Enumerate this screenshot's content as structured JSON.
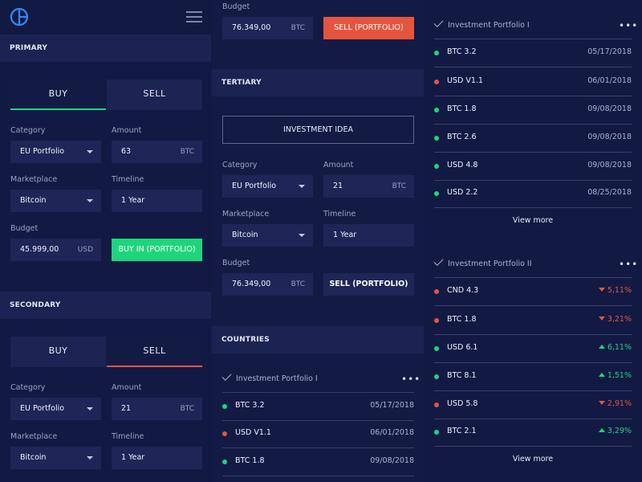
{
  "primary": {
    "section": "PRIMARY",
    "tabs": [
      "BUY",
      "SELL"
    ],
    "category_label": "Category",
    "category_value": "EU Portfolio",
    "amount_label": "Amount",
    "amount_value": "63",
    "amount_unit": "BTC",
    "marketplace_label": "Marketplace",
    "marketplace_value": "Bitcoin",
    "timeline_label": "Timeline",
    "timeline_value": "1 Year",
    "budget_label": "Budget",
    "budget_value": "45.999,00",
    "budget_unit": "USD",
    "action_label": "BUY IN (PORTFOLIO)"
  },
  "secondary": {
    "section": "SECONDARY",
    "tabs": [
      "BUY",
      "SELL"
    ],
    "category_label": "Category",
    "category_value": "EU Portfolio",
    "amount_label": "Amount",
    "amount_value": "21",
    "amount_unit": "BTC",
    "marketplace_label": "Marketplace",
    "marketplace_value": "Bitcoin",
    "timeline_label": "Timeline",
    "timeline_value": "1 Year"
  },
  "col2top": {
    "budget_label": "Budget",
    "budget_value": "76.349,00",
    "budget_unit": "BTC",
    "action_label": "SELL (PORTFOLIO)"
  },
  "tertiary": {
    "section": "TERTIARY",
    "idea_label": "INVESTMENT IDEA",
    "category_label": "Category",
    "category_value": "EU Portfolio",
    "amount_label": "Amount",
    "amount_value": "21",
    "amount_unit": "BTC",
    "marketplace_label": "Marketplace",
    "marketplace_value": "Bitcoin",
    "timeline_label": "Timeline",
    "timeline_value": "1 Year",
    "budget_label": "Budget",
    "budget_value": "76.349,00",
    "budget_unit": "BTC",
    "action_label": "SELL (PORTFOLIO)"
  },
  "countries": {
    "section": "COUNTRIES",
    "portfolio_title": "Investment Portfolio I",
    "menu": "•••",
    "rows": [
      {
        "name": "BTC 3.2",
        "date": "05/17/2018",
        "status": "green"
      },
      {
        "name": "USD V1.1",
        "date": "06/01/2018",
        "status": "red"
      },
      {
        "name": "BTC 1.8",
        "date": "09/08/2018",
        "status": "green"
      }
    ]
  },
  "portfolio1": {
    "title": "Investment Portfolio I",
    "menu": "•••",
    "rows": [
      {
        "name": "BTC 3.2",
        "date": "05/17/2018",
        "status": "green"
      },
      {
        "name": "USD V1.1",
        "date": "06/01/2018",
        "status": "red"
      },
      {
        "name": "BTC 1.8",
        "date": "09/08/2018",
        "status": "green"
      },
      {
        "name": "BTC 2.6",
        "date": "09/08/2018",
        "status": "green"
      },
      {
        "name": "USD 4.8",
        "date": "09/08/2018",
        "status": "green"
      },
      {
        "name": "USD 2.2",
        "date": "08/25/2018",
        "status": "green"
      }
    ],
    "view_more": "View more"
  },
  "portfolio2": {
    "title": "Investment Portfolio II",
    "menu": "•••",
    "rows": [
      {
        "name": "CND 4.3",
        "change": "5,11%",
        "direction": "down",
        "status": "red"
      },
      {
        "name": "BTC 1.8",
        "change": "3,21%",
        "direction": "down",
        "status": "red"
      },
      {
        "name": "USD 6.1",
        "change": "6,11%",
        "direction": "up",
        "status": "green"
      },
      {
        "name": "BTC 8.1",
        "change": "1,51%",
        "direction": "up",
        "status": "green"
      },
      {
        "name": "USD 5.8",
        "change": "2,91%",
        "direction": "down",
        "status": "red"
      },
      {
        "name": "BTC 2.1",
        "change": "3,29%",
        "direction": "up",
        "status": "green"
      }
    ],
    "view_more": "View more"
  },
  "colors": {
    "background": "#121a44",
    "section_header": "#1a2352",
    "field": "#1d2656",
    "green": "#1ed67a",
    "red": "#e5553d",
    "logo": "#2f8cf2"
  },
  "icons": [
    "logo-icon",
    "hamburger-menu-icon",
    "check-icon",
    "more-icon",
    "dropdown-caret-icon",
    "arrow-up-icon",
    "arrow-down-icon"
  ]
}
